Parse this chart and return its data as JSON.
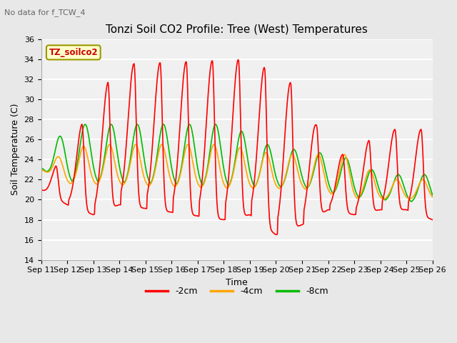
{
  "title": "Tonzi Soil CO2 Profile: Tree (West) Temperatures",
  "subtitle": "No data for f_TCW_4",
  "xlabel": "Time",
  "ylabel": "Soil Temperature (C)",
  "ylim": [
    14,
    36
  ],
  "yticks": [
    14,
    16,
    18,
    20,
    22,
    24,
    26,
    28,
    30,
    32,
    34,
    36
  ],
  "xtick_labels": [
    "Sep 11",
    "Sep 12",
    "Sep 13",
    "Sep 14",
    "Sep 15",
    "Sep 16",
    "Sep 17",
    "Sep 18",
    "Sep 19",
    "Sep 20",
    "Sep 21",
    "Sep 22",
    "Sep 23",
    "Sep 24",
    "Sep 25",
    "Sep 26"
  ],
  "legend_label": "TZ_soilco2",
  "line_colors": [
    "#ff0000",
    "#ffa500",
    "#00bb00"
  ],
  "line_labels": [
    "-2cm",
    "-4cm",
    "-8cm"
  ],
  "background_color": "#e8e8e8",
  "plot_bg_color": "#f0f0f0",
  "grid_color": "#ffffff",
  "figsize": [
    6.4,
    4.8
  ],
  "dpi": 100
}
